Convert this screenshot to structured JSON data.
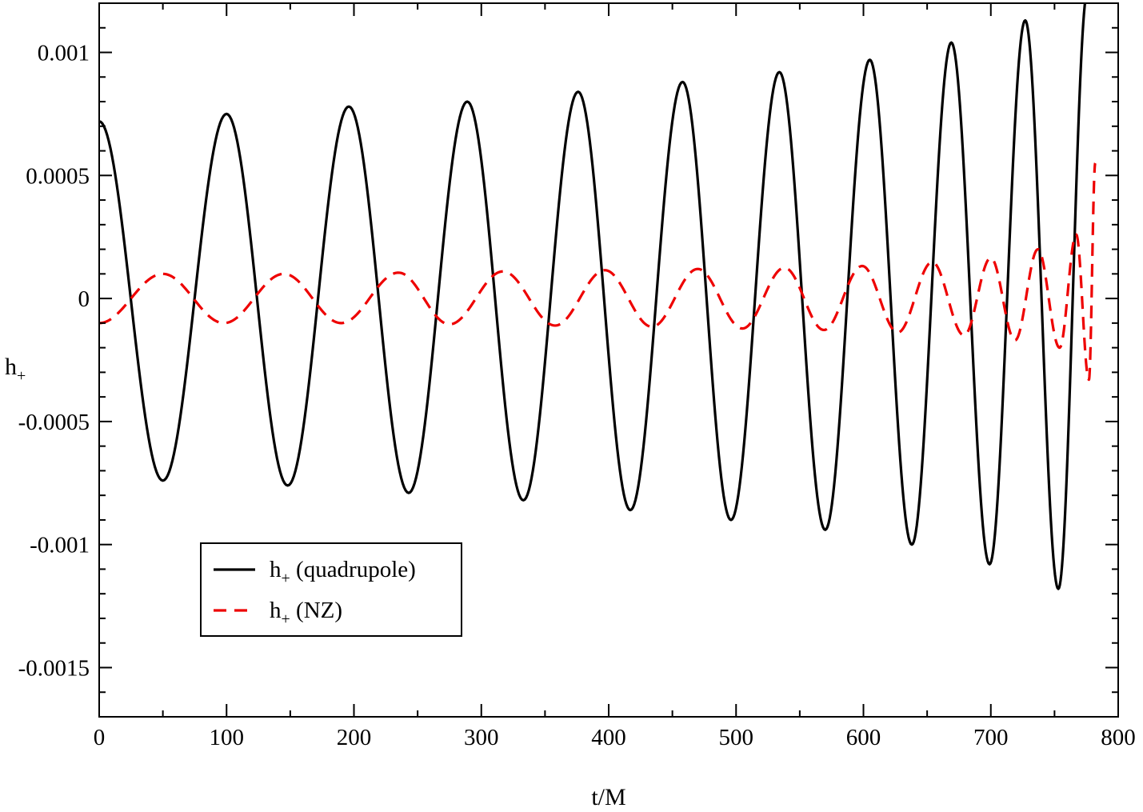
{
  "chart_data": {
    "type": "line",
    "title": "",
    "xlabel": "t/M",
    "ylabel": {
      "main": "h",
      "sub": "+"
    },
    "xlim": [
      0,
      800
    ],
    "ylim": [
      -0.0017,
      0.0012
    ],
    "xticks": [
      {
        "value": 0,
        "label": "0"
      },
      {
        "value": 100,
        "label": "100"
      },
      {
        "value": 200,
        "label": "200"
      },
      {
        "value": 300,
        "label": "300"
      },
      {
        "value": 400,
        "label": "400"
      },
      {
        "value": 500,
        "label": "500"
      },
      {
        "value": 600,
        "label": "600"
      },
      {
        "value": 700,
        "label": "700"
      },
      {
        "value": 800,
        "label": "800"
      }
    ],
    "yticks": [
      {
        "value": 0.001,
        "label": "0.001"
      },
      {
        "value": 0.0005,
        "label": "0.0005"
      },
      {
        "value": 0,
        "label": "0"
      },
      {
        "value": -0.0005,
        "label": "-0.0005"
      },
      {
        "value": -0.001,
        "label": "-0.001"
      },
      {
        "value": -0.0015,
        "label": "-0.0015"
      }
    ],
    "grid": false,
    "legend": {
      "position": "lower-left",
      "entries": [
        {
          "main": "h",
          "sub": "+",
          "rest": " (quadrupole)",
          "series": 0
        },
        {
          "main": "h",
          "sub": "+",
          "rest": " (NZ)",
          "series": 1
        }
      ]
    },
    "series": [
      {
        "name": "h+ (quadrupole)",
        "color": "#000000",
        "style": "solid",
        "x": [
          0,
          50,
          100,
          148,
          196,
          243,
          289,
          333,
          376,
          417,
          458,
          496,
          534,
          570,
          605,
          638,
          669,
          699,
          727,
          753,
          776,
          790
        ],
        "y": [
          0.00072,
          -0.00074,
          0.00075,
          -0.00076,
          0.00078,
          -0.00079,
          0.0008,
          -0.00082,
          0.00084,
          -0.00086,
          0.00088,
          -0.0009,
          0.00092,
          -0.00094,
          0.00097,
          -0.001,
          0.00104,
          -0.00108,
          0.00113,
          -0.00118,
          0.00125,
          0.0013
        ]
      },
      {
        "name": "h+ (NZ)",
        "color": "#ee0000",
        "style": "dashed",
        "x": [
          0,
          50,
          98,
          145,
          190,
          235,
          275,
          317,
          358,
          397,
          434,
          470,
          505,
          538,
          569,
          599,
          627,
          654,
          679,
          700,
          719,
          737,
          754,
          767,
          777,
          782
        ],
        "y": [
          -0.0001,
          0.0001,
          -0.0001,
          0.0001,
          -0.0001,
          0.000105,
          -0.000105,
          0.00011,
          -0.00011,
          0.000115,
          -0.000115,
          0.00012,
          -0.000122,
          0.000125,
          -0.000128,
          0.000132,
          -0.000138,
          0.000148,
          -0.00015,
          0.000165,
          -0.00017,
          0.0002,
          -0.0002,
          0.00026,
          -0.00033,
          0.00055
        ]
      }
    ]
  }
}
